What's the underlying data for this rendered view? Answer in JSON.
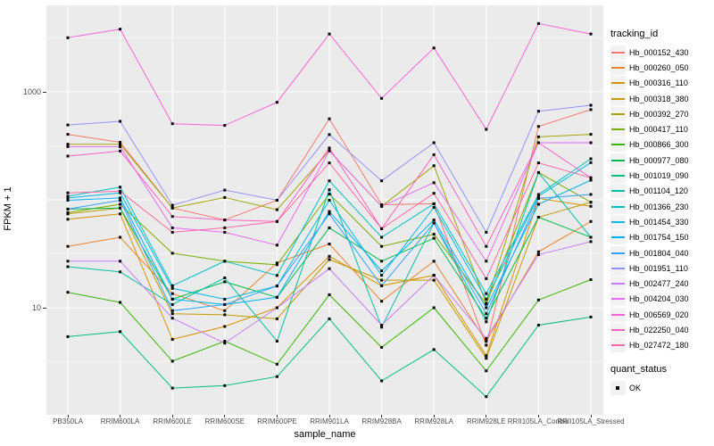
{
  "figure": {
    "y_axis_title": "FPKM + 1",
    "x_axis_title": "sample_name"
  },
  "legend": {
    "tracking_title": "tracking_id",
    "quant_title": "quant_status",
    "quant_items": [
      {
        "label": "OK",
        "marker": "black-square"
      }
    ]
  },
  "colors": {
    "panel_background": "#EBEBEB",
    "gridline": "#FFFFFF",
    "axis_text": "#4D4D4D",
    "point": "#000000",
    "legend_key_background": "#F2F2F2"
  },
  "chart_data": {
    "type": "line",
    "title": "",
    "xlabel": "sample_name",
    "ylabel": "FPKM + 1",
    "y_scale": "log10",
    "grid": true,
    "legend_position": "right",
    "y_ticks": [
      {
        "value": 10,
        "label": "10"
      },
      {
        "value": 1000,
        "label": "1000"
      }
    ],
    "y_gridlines_major": [
      10,
      100,
      1000
    ],
    "y_gridlines_minor": [
      3.162,
      31.62,
      316.2,
      3162
    ],
    "ylim": [
      1.05,
      5800
    ],
    "point_marker": "black-square",
    "point_legend_label": "OK",
    "categories": [
      "PB350LA",
      "RRIM600LA",
      "RRIM600LE",
      "RRIM600SE",
      "RRIM600PE",
      "RRIM901LA",
      "RRIM928BA",
      "RRIM928LA",
      "RRIM928LE",
      "RRII105LA_Control",
      "RRII105LA_Stressed"
    ],
    "series": [
      {
        "name": "Hb_000152_430",
        "color": "#F8766D",
        "values": [
          404,
          341,
          84,
          65,
          99,
          563,
          90,
          92,
          4.5,
          478,
          685
        ]
      },
      {
        "name": "Hb_000260_050",
        "color": "#EA8331",
        "values": [
          37,
          45,
          13.5,
          9.4,
          26,
          39,
          11.5,
          27,
          4.9,
          33,
          63
        ]
      },
      {
        "name": "Hb_000316_110",
        "color": "#D89000",
        "values": [
          66,
          74,
          5.1,
          6.7,
          10,
          30,
          16,
          20,
          3.6,
          103,
          87
        ]
      },
      {
        "name": "Hb_000318_380",
        "color": "#C09B00",
        "values": [
          74,
          84,
          8.8,
          8.6,
          7.9,
          28,
          18,
          18,
          3.4,
          69,
          95
        ]
      },
      {
        "name": "Hb_000392_270",
        "color": "#A3A500",
        "values": [
          327,
          327,
          84,
          105,
          81,
          284,
          87,
          207,
          11,
          383,
          404
        ]
      },
      {
        "name": "Hb_000417_110",
        "color": "#7CAE00",
        "values": [
          76,
          91,
          32,
          27,
          25,
          113,
          37,
          48,
          10.8,
          179,
          95
        ]
      },
      {
        "name": "Hb_000866_300",
        "color": "#39B600",
        "values": [
          13.9,
          11.2,
          3.2,
          4.9,
          3.0,
          13.2,
          4.3,
          10.0,
          2.6,
          11.8,
          18.2
        ]
      },
      {
        "name": "Hb_000977_080",
        "color": "#00BB4E",
        "values": [
          82,
          84,
          12,
          17.4,
          12.5,
          55,
          27,
          44,
          8.0,
          69,
          45
        ]
      },
      {
        "name": "Hb_001019_090",
        "color": "#00BF7D",
        "values": [
          5.4,
          6.0,
          1.8,
          1.9,
          2.3,
          7.9,
          2.1,
          4.1,
          1.5,
          6.9,
          8.2
        ]
      },
      {
        "name": "Hb_001104_120",
        "color": "#00C1A3",
        "values": [
          24,
          21.5,
          10.7,
          18.9,
          4.9,
          124,
          6.6,
          61,
          7.4,
          179,
          45
        ]
      },
      {
        "name": "Hb_001366_230",
        "color": "#00BFC4",
        "values": [
          108,
          131,
          16,
          27,
          19.9,
          150,
          45,
          92,
          13.5,
          112,
          240
        ]
      },
      {
        "name": "Hb_001454_330",
        "color": "#00BAE0",
        "values": [
          104,
          116,
          15.1,
          12,
          15.9,
          99,
          20,
          85,
          12,
          108,
          221
        ]
      },
      {
        "name": "Hb_001754_150",
        "color": "#00B0F6",
        "values": [
          99,
          104,
          12,
          10.7,
          12.5,
          78,
          22,
          65,
          10,
          91,
          152
        ]
      },
      {
        "name": "Hb_001804_040",
        "color": "#35A2FF",
        "values": [
          82,
          99,
          9.4,
          10.7,
          15.9,
          74,
          16,
          61,
          8.8,
          103,
          112
        ]
      },
      {
        "name": "Hb_001951_110",
        "color": "#9590FF",
        "values": [
          494,
          534,
          89,
          123,
          99,
          402,
          150,
          338,
          50,
          662,
          752
        ]
      },
      {
        "name": "Hb_002477_240",
        "color": "#C77CFF",
        "values": [
          27,
          27,
          8.0,
          4.7,
          10,
          23,
          6.9,
          20,
          5.2,
          31,
          41
        ]
      },
      {
        "name": "Hb_004204_030",
        "color": "#E76BF3",
        "values": [
          311,
          311,
          55,
          50,
          38,
          284,
          87,
          144,
          27,
          338,
          338
        ]
      },
      {
        "name": "Hb_006569_020",
        "color": "#FA62DB",
        "values": [
          3175,
          3810,
          507,
          489,
          800,
          3440,
          870,
          2550,
          450,
          4300,
          3440
        ]
      },
      {
        "name": "Hb_022250_040",
        "color": "#FF61C3",
        "values": [
          254,
          283,
          70,
          65,
          63,
          302,
          54,
          262,
          37,
          338,
          160
        ]
      },
      {
        "name": "Hb_027472_180",
        "color": "#FF67A4",
        "values": [
          116,
          120,
          50,
          55,
          63,
          220,
          54,
          115,
          18.6,
          220,
          160
        ]
      }
    ]
  }
}
